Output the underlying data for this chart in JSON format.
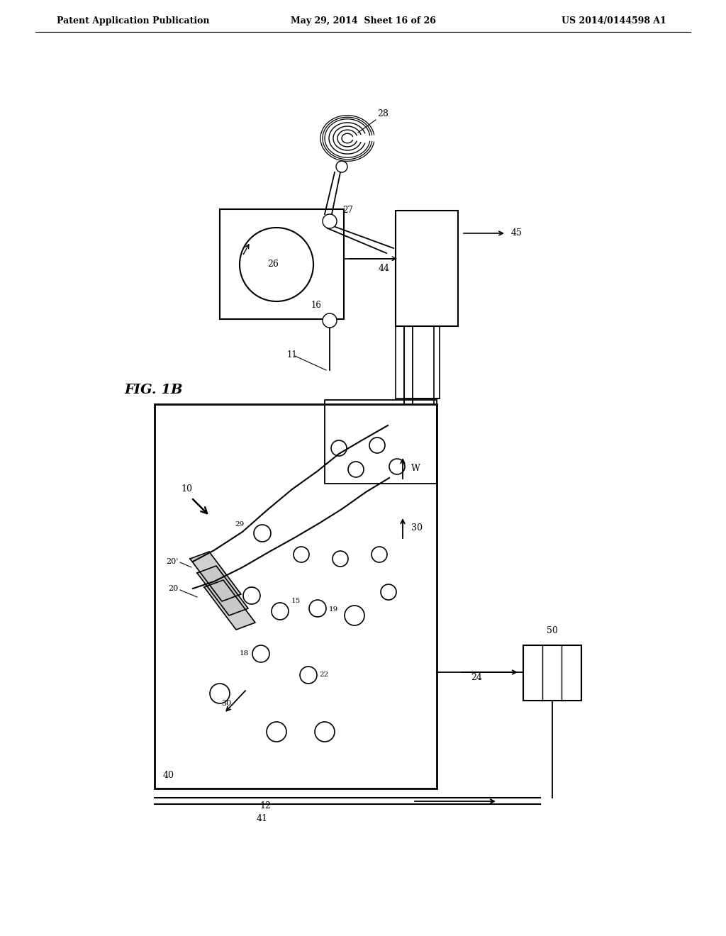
{
  "title_left": "Patent Application Publication",
  "title_mid": "May 29, 2014  Sheet 16 of 26",
  "title_right": "US 2014/0144598 A1",
  "fig_label": "FIG. 1B",
  "background_color": "#ffffff",
  "line_color": "#000000",
  "title_fontsize": 9,
  "label_fontsize": 8.5
}
